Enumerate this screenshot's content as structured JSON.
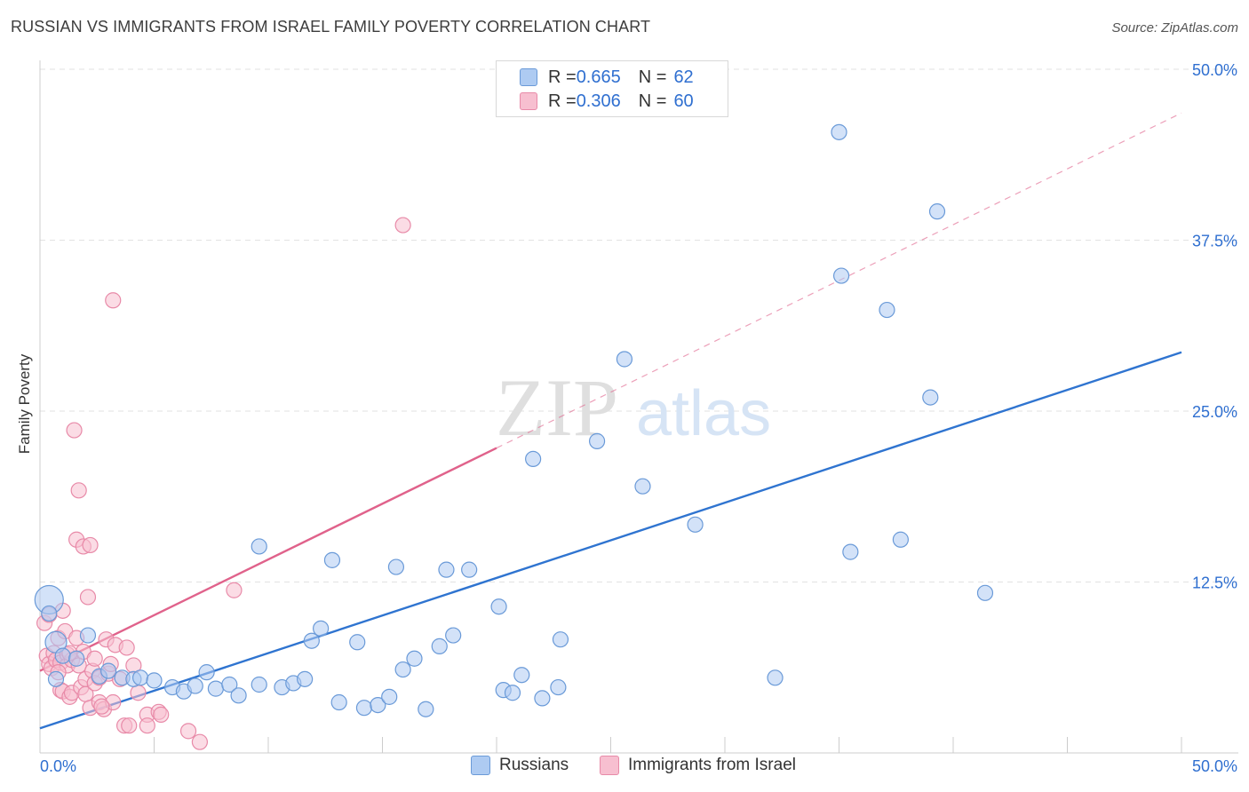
{
  "title": "RUSSIAN VS IMMIGRANTS FROM ISRAEL FAMILY POVERTY CORRELATION CHART",
  "source": "Source: ZipAtlas.com",
  "watermark": {
    "zip": "ZIP",
    "atlas": "atlas"
  },
  "colors": {
    "blue_fill": "#aecbf2",
    "blue_stroke": "#6a9ad8",
    "blue_line": "#2f74d0",
    "pink_fill": "#f7bfd0",
    "pink_stroke": "#e88aa8",
    "pink_line": "#e0628b",
    "value_text": "#2f6fd0",
    "grid": "#e2e2e2"
  },
  "legend": {
    "rows": [
      {
        "r_label": "R = ",
        "r_value": "0.665",
        "n_label": "N = ",
        "n_value": "62"
      },
      {
        "r_label": "R = ",
        "r_value": "0.306",
        "n_label": "N = ",
        "n_value": "60"
      }
    ]
  },
  "bottom_legend": [
    "Russians",
    "Immigrants from Israel"
  ],
  "chart_data": {
    "type": "scatter",
    "xlabel": "",
    "ylabel": "Family Poverty",
    "xlim": [
      0,
      50
    ],
    "ylim": [
      0,
      50
    ],
    "x_tick_labels": [
      {
        "value": 0,
        "label": "0.0%"
      },
      {
        "value": 50,
        "label": "50.0%"
      }
    ],
    "y_tick_labels": [
      {
        "value": 12.5,
        "label": "12.5%"
      },
      {
        "value": 25,
        "label": "25.0%"
      },
      {
        "value": 37.5,
        "label": "37.5%"
      },
      {
        "value": 50,
        "label": "50.0%"
      }
    ],
    "grid": true,
    "series": [
      {
        "name": "Russians",
        "r": 0.665,
        "n": 62,
        "trend": {
          "x": [
            0,
            50
          ],
          "y": [
            1.8,
            29.3
          ],
          "style": "solid"
        },
        "points": [
          [
            0.4,
            11.2
          ],
          [
            0.4,
            10.2
          ],
          [
            0.7,
            8.1
          ],
          [
            1.0,
            7.1
          ],
          [
            1.6,
            6.9
          ],
          [
            2.1,
            8.6
          ],
          [
            2.6,
            5.6
          ],
          [
            3.0,
            6.0
          ],
          [
            3.6,
            5.5
          ],
          [
            4.1,
            5.4
          ],
          [
            4.4,
            5.5
          ],
          [
            5.0,
            5.3
          ],
          [
            5.8,
            4.8
          ],
          [
            6.3,
            4.5
          ],
          [
            6.8,
            4.9
          ],
          [
            7.3,
            5.9
          ],
          [
            7.7,
            4.7
          ],
          [
            8.3,
            5.0
          ],
          [
            8.7,
            4.2
          ],
          [
            9.6,
            5.0
          ],
          [
            9.6,
            15.1
          ],
          [
            10.6,
            4.8
          ],
          [
            11.1,
            5.1
          ],
          [
            11.6,
            5.4
          ],
          [
            11.9,
            8.2
          ],
          [
            12.3,
            9.1
          ],
          [
            12.8,
            14.1
          ],
          [
            13.1,
            3.7
          ],
          [
            13.9,
            8.1
          ],
          [
            14.2,
            3.3
          ],
          [
            14.8,
            3.5
          ],
          [
            15.3,
            4.1
          ],
          [
            15.6,
            13.6
          ],
          [
            15.9,
            6.1
          ],
          [
            16.4,
            6.9
          ],
          [
            16.9,
            3.2
          ],
          [
            17.5,
            7.8
          ],
          [
            17.8,
            13.4
          ],
          [
            18.1,
            8.6
          ],
          [
            18.8,
            13.4
          ],
          [
            20.1,
            10.7
          ],
          [
            20.3,
            4.6
          ],
          [
            20.7,
            4.4
          ],
          [
            21.1,
            5.7
          ],
          [
            21.6,
            21.5
          ],
          [
            22.0,
            4.0
          ],
          [
            22.7,
            4.8
          ],
          [
            22.8,
            8.3
          ],
          [
            24.4,
            22.8
          ],
          [
            25.6,
            28.8
          ],
          [
            26.4,
            19.5
          ],
          [
            28.7,
            16.7
          ],
          [
            32.2,
            5.5
          ],
          [
            35.0,
            45.4
          ],
          [
            35.1,
            34.9
          ],
          [
            35.5,
            14.7
          ],
          [
            37.1,
            32.4
          ],
          [
            37.7,
            15.6
          ],
          [
            39.0,
            26.0
          ],
          [
            39.3,
            39.6
          ],
          [
            41.4,
            11.7
          ],
          [
            0.7,
            5.4
          ]
        ]
      },
      {
        "name": "Immigrants from Israel",
        "r": 0.306,
        "n": 60,
        "trend": {
          "x": [
            0,
            20
          ],
          "y": [
            6.0,
            22.3
          ],
          "style": "solid"
        },
        "trend_extension": {
          "x": [
            20,
            50
          ],
          "y": [
            22.3,
            46.8
          ],
          "style": "dashed"
        },
        "points": [
          [
            0.2,
            9.5
          ],
          [
            0.3,
            7.1
          ],
          [
            0.4,
            6.5
          ],
          [
            0.4,
            10.1
          ],
          [
            0.5,
            6.2
          ],
          [
            0.6,
            7.3
          ],
          [
            0.7,
            6.8
          ],
          [
            0.8,
            8.4
          ],
          [
            0.9,
            4.6
          ],
          [
            0.9,
            6.6
          ],
          [
            1.0,
            10.4
          ],
          [
            1.0,
            4.5
          ],
          [
            1.1,
            8.9
          ],
          [
            1.2,
            7.2
          ],
          [
            1.2,
            6.4
          ],
          [
            1.3,
            4.1
          ],
          [
            1.4,
            4.4
          ],
          [
            1.4,
            6.8
          ],
          [
            1.5,
            23.6
          ],
          [
            1.6,
            8.4
          ],
          [
            1.6,
            15.6
          ],
          [
            1.7,
            19.2
          ],
          [
            1.7,
            6.4
          ],
          [
            1.8,
            4.8
          ],
          [
            1.9,
            15.1
          ],
          [
            1.9,
            7.4
          ],
          [
            2.0,
            5.4
          ],
          [
            2.0,
            4.3
          ],
          [
            2.1,
            11.4
          ],
          [
            2.2,
            3.3
          ],
          [
            2.2,
            15.2
          ],
          [
            2.3,
            6.0
          ],
          [
            2.4,
            6.9
          ],
          [
            2.4,
            5.1
          ],
          [
            2.6,
            5.5
          ],
          [
            2.6,
            3.7
          ],
          [
            2.8,
            3.2
          ],
          [
            2.9,
            8.3
          ],
          [
            3.0,
            5.8
          ],
          [
            3.1,
            6.5
          ],
          [
            3.2,
            33.1
          ],
          [
            3.2,
            3.7
          ],
          [
            3.3,
            7.9
          ],
          [
            3.5,
            5.4
          ],
          [
            3.7,
            2.0
          ],
          [
            3.8,
            7.7
          ],
          [
            3.9,
            2.0
          ],
          [
            4.1,
            6.4
          ],
          [
            4.3,
            4.4
          ],
          [
            4.7,
            2.8
          ],
          [
            4.7,
            2.0
          ],
          [
            5.2,
            3.0
          ],
          [
            5.3,
            2.8
          ],
          [
            6.5,
            1.6
          ],
          [
            7.0,
            0.8
          ],
          [
            8.5,
            11.9
          ],
          [
            15.9,
            38.6
          ],
          [
            0.8,
            5.9
          ],
          [
            1.3,
            7.3
          ],
          [
            2.7,
            3.4
          ]
        ]
      }
    ]
  }
}
